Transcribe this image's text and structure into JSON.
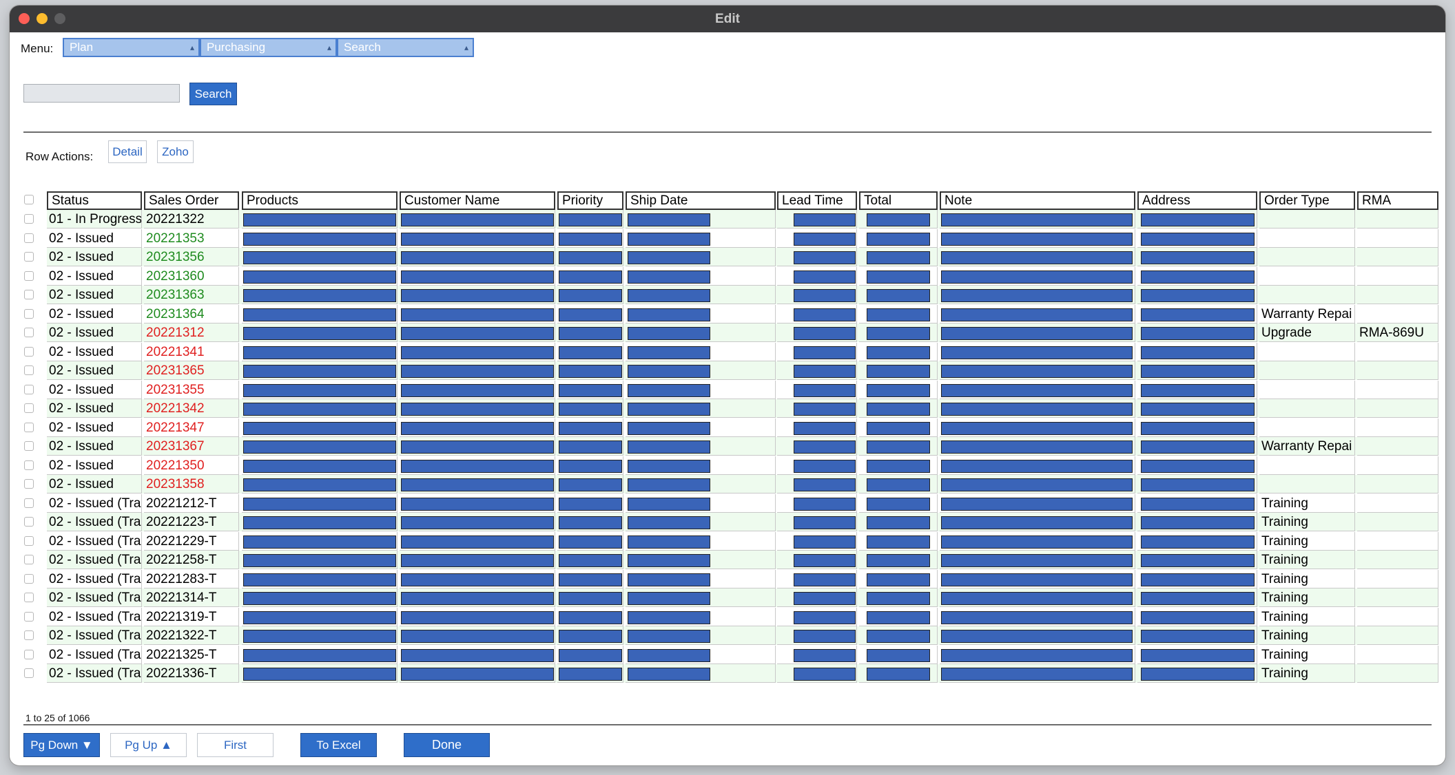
{
  "window": {
    "title": "Edit"
  },
  "menu": {
    "label": "Menu:",
    "dropdowns": [
      {
        "value": "Plan"
      },
      {
        "value": "Purchasing"
      },
      {
        "value": "Search"
      }
    ]
  },
  "search": {
    "placeholder": "",
    "value": "",
    "button_label": "Search"
  },
  "row_actions": {
    "label": "Row Actions:",
    "detail_label": "Detail",
    "zoho_label": "Zoho"
  },
  "table": {
    "columns": [
      "Status",
      "Sales Order",
      "Products",
      "Customer Name",
      "Priority",
      "Ship Date",
      "Lead Time",
      "Total",
      "Note",
      "Address",
      "Order Type",
      "RMA"
    ],
    "rows": [
      {
        "status": "01 - In Progress",
        "sales_order": "20221322",
        "so_color": "black",
        "order_type": "",
        "rma": ""
      },
      {
        "status": "02 - Issued",
        "sales_order": "20221353",
        "so_color": "green",
        "order_type": "",
        "rma": ""
      },
      {
        "status": "02 - Issued",
        "sales_order": "20231356",
        "so_color": "green",
        "order_type": "",
        "rma": ""
      },
      {
        "status": "02 - Issued",
        "sales_order": "20231360",
        "so_color": "green",
        "order_type": "",
        "rma": ""
      },
      {
        "status": "02 - Issued",
        "sales_order": "20231363",
        "so_color": "green",
        "order_type": "",
        "rma": ""
      },
      {
        "status": "02 - Issued",
        "sales_order": "20231364",
        "so_color": "green",
        "order_type": "Warranty Repai",
        "rma": ""
      },
      {
        "status": "02 - Issued",
        "sales_order": "20221312",
        "so_color": "red",
        "order_type": "Upgrade",
        "rma": "RMA-869U"
      },
      {
        "status": "02 - Issued",
        "sales_order": "20221341",
        "so_color": "red",
        "order_type": "",
        "rma": ""
      },
      {
        "status": "02 - Issued",
        "sales_order": "20231365",
        "so_color": "red",
        "order_type": "",
        "rma": ""
      },
      {
        "status": "02 - Issued",
        "sales_order": "20231355",
        "so_color": "red",
        "order_type": "",
        "rma": ""
      },
      {
        "status": "02 - Issued",
        "sales_order": "20221342",
        "so_color": "red",
        "order_type": "",
        "rma": ""
      },
      {
        "status": "02 - Issued",
        "sales_order": "20221347",
        "so_color": "red",
        "order_type": "",
        "rma": ""
      },
      {
        "status": "02 - Issued",
        "sales_order": "20231367",
        "so_color": "red",
        "order_type": "Warranty Repai",
        "rma": ""
      },
      {
        "status": "02 - Issued",
        "sales_order": "20221350",
        "so_color": "red",
        "order_type": "",
        "rma": ""
      },
      {
        "status": "02 - Issued",
        "sales_order": "20231358",
        "so_color": "red",
        "order_type": "",
        "rma": ""
      },
      {
        "status": "02 - Issued (Tra",
        "sales_order": "20221212-T",
        "so_color": "black",
        "order_type": "Training",
        "rma": ""
      },
      {
        "status": "02 - Issued (Tra",
        "sales_order": "20221223-T",
        "so_color": "black",
        "order_type": "Training",
        "rma": ""
      },
      {
        "status": "02 - Issued (Tra",
        "sales_order": "20221229-T",
        "so_color": "black",
        "order_type": "Training",
        "rma": ""
      },
      {
        "status": "02 - Issued (Tra",
        "sales_order": "20221258-T",
        "so_color": "black",
        "order_type": "Training",
        "rma": ""
      },
      {
        "status": "02 - Issued (Tra",
        "sales_order": "20221283-T",
        "so_color": "black",
        "order_type": "Training",
        "rma": ""
      },
      {
        "status": "02 - Issued (Tra",
        "sales_order": "20221314-T",
        "so_color": "black",
        "order_type": "Training",
        "rma": ""
      },
      {
        "status": "02 - Issued (Tra",
        "sales_order": "20221319-T",
        "so_color": "black",
        "order_type": "Training",
        "rma": ""
      },
      {
        "status": "02 - Issued (Tra",
        "sales_order": "20221322-T",
        "so_color": "black",
        "order_type": "Training",
        "rma": ""
      },
      {
        "status": "02 - Issued (Tra",
        "sales_order": "20221325-T",
        "so_color": "black",
        "order_type": "Training",
        "rma": ""
      },
      {
        "status": "02 - Issued (Tra",
        "sales_order": "20221336-T",
        "so_color": "black",
        "order_type": "Training",
        "rma": ""
      }
    ]
  },
  "pager": {
    "info": "1 to 25 of 1066"
  },
  "footer": {
    "pg_down_label": "Pg Down ▼",
    "pg_up_label": "Pg Up ▲",
    "first_label": "First",
    "to_excel_label": "To Excel",
    "done_label": "Done"
  },
  "colors": {
    "accent": "#2f6ec9",
    "row_alt": "#eefbee",
    "redacted": "#3a64b8",
    "so_green": "#1f8b1f",
    "so_red": "#e02020"
  }
}
